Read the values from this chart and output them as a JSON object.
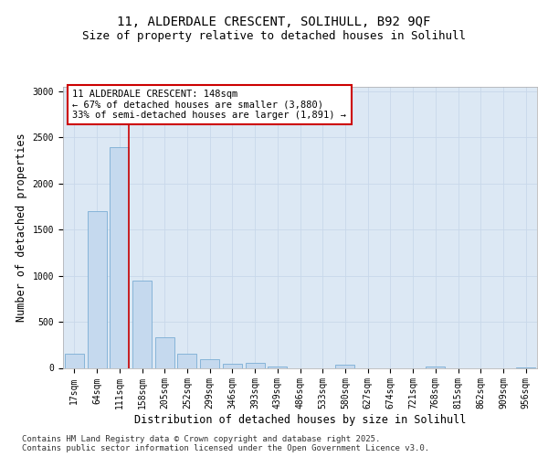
{
  "title_line1": "11, ALDERDALE CRESCENT, SOLIHULL, B92 9QF",
  "title_line2": "Size of property relative to detached houses in Solihull",
  "xlabel": "Distribution of detached houses by size in Solihull",
  "ylabel": "Number of detached properties",
  "categories": [
    "17sqm",
    "64sqm",
    "111sqm",
    "158sqm",
    "205sqm",
    "252sqm",
    "299sqm",
    "346sqm",
    "393sqm",
    "439sqm",
    "486sqm",
    "533sqm",
    "580sqm",
    "627sqm",
    "674sqm",
    "721sqm",
    "768sqm",
    "815sqm",
    "862sqm",
    "909sqm",
    "956sqm"
  ],
  "values": [
    155,
    1700,
    2400,
    950,
    330,
    155,
    90,
    45,
    50,
    10,
    0,
    0,
    35,
    0,
    0,
    0,
    18,
    0,
    0,
    0,
    8
  ],
  "bar_color": "#c5d9ee",
  "bar_edge_color": "#7aadd4",
  "vline_color": "#cc0000",
  "vline_pos": 2.43,
  "annotation_text": "11 ALDERDALE CRESCENT: 148sqm\n← 67% of detached houses are smaller (3,880)\n33% of semi-detached houses are larger (1,891) →",
  "annotation_box_facecolor": "#ffffff",
  "annotation_box_edgecolor": "#cc0000",
  "ylim": [
    0,
    3050
  ],
  "yticks": [
    0,
    500,
    1000,
    1500,
    2000,
    2500,
    3000
  ],
  "grid_color": "#c8d8ea",
  "bg_color": "#dce8f4",
  "footer_text": "Contains HM Land Registry data © Crown copyright and database right 2025.\nContains public sector information licensed under the Open Government Licence v3.0.",
  "title_fontsize": 10,
  "subtitle_fontsize": 9,
  "axis_label_fontsize": 8.5,
  "tick_fontsize": 7,
  "annotation_fontsize": 7.5,
  "footer_fontsize": 6.5
}
